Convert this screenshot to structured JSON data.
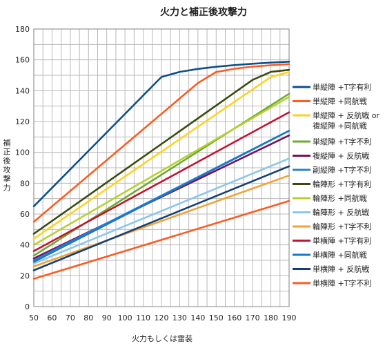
{
  "chart_data": {
    "type": "line",
    "title": "火力と補正後攻撃力",
    "xlabel": "火力もしくは雷装",
    "ylabel": "補正後攻撃力",
    "xlim": [
      50,
      190
    ],
    "ylim": [
      0,
      180
    ],
    "x_ticks": [
      50,
      60,
      70,
      80,
      90,
      100,
      110,
      120,
      130,
      140,
      150,
      160,
      170,
      180,
      190
    ],
    "y_ticks": [
      0,
      20,
      40,
      60,
      80,
      100,
      120,
      140,
      160,
      180
    ],
    "grid": true,
    "legend_position": "right",
    "series": [
      {
        "name": "単縦陣 +T字有利",
        "color": "#0d4f8b",
        "points": [
          [
            50,
            65
          ],
          [
            120,
            148.9
          ],
          [
            130,
            152.2
          ],
          [
            140,
            154.1
          ],
          [
            150,
            155.5
          ],
          [
            160,
            156.6
          ],
          [
            170,
            157.5
          ],
          [
            180,
            158.2
          ],
          [
            190,
            158.8
          ]
        ]
      },
      {
        "name": "単縦陣 +同航戦",
        "color": "#ff5a1f",
        "points": [
          [
            50,
            55
          ],
          [
            140,
            145
          ],
          [
            150,
            152.1
          ],
          [
            160,
            154.2
          ],
          [
            170,
            155.6
          ],
          [
            180,
            156.5
          ],
          [
            190,
            157.2
          ]
        ]
      },
      {
        "name": "単縦陣 + 反航戦 or 複縦陣 +同航戦",
        "color": "#ffd21f",
        "points": [
          [
            50,
            44
          ],
          [
            180,
            148.9
          ],
          [
            190,
            152.1
          ]
        ]
      },
      {
        "name": "単縦陣 +T字不利",
        "color": "#6aab2f",
        "points": [
          [
            50,
            33
          ],
          [
            190,
            138
          ]
        ]
      },
      {
        "name": "複縦陣 + 反航戦",
        "color": "#7a0f5a",
        "points": [
          [
            50,
            31.2
          ],
          [
            190,
            111
          ]
        ]
      },
      {
        "name": "副縦陣 +T字不利",
        "color": "#2e7fd6",
        "points": [
          [
            50,
            30
          ],
          [
            190,
            114
          ]
        ]
      },
      {
        "name": "輪陣形 +T字有利",
        "color": "#3a4a0f",
        "points": [
          [
            50,
            47.2
          ],
          [
            170,
            147
          ],
          [
            180,
            152.2
          ],
          [
            190,
            153.5
          ]
        ]
      },
      {
        "name": "輪陣形 +同航戦",
        "color": "#b5d12e",
        "points": [
          [
            50,
            40
          ],
          [
            190,
            136
          ]
        ]
      },
      {
        "name": "輪陣形 + 反航戦",
        "color": "#8cc6ee",
        "points": [
          [
            50,
            28
          ],
          [
            190,
            96
          ]
        ]
      },
      {
        "name": "輪陣形 +T字不利",
        "color": "#f2a232",
        "points": [
          [
            50,
            26
          ],
          [
            190,
            85
          ]
        ]
      },
      {
        "name": "単横陣 +T字有利",
        "color": "#c41230",
        "points": [
          [
            50,
            36
          ],
          [
            190,
            126
          ]
        ]
      },
      {
        "name": "単横陣 +同航戦",
        "color": "#1479c8",
        "points": [
          [
            50,
            29
          ],
          [
            190,
            114
          ]
        ]
      },
      {
        "name": "単横陣 + 反航戦",
        "color": "#123f78",
        "points": [
          [
            50,
            23.5
          ],
          [
            190,
            91
          ]
        ]
      },
      {
        "name": "単横陣 +T字不利",
        "color": "#ff5a1f",
        "points": [
          [
            50,
            18
          ],
          [
            190,
            68.5
          ]
        ]
      }
    ]
  }
}
